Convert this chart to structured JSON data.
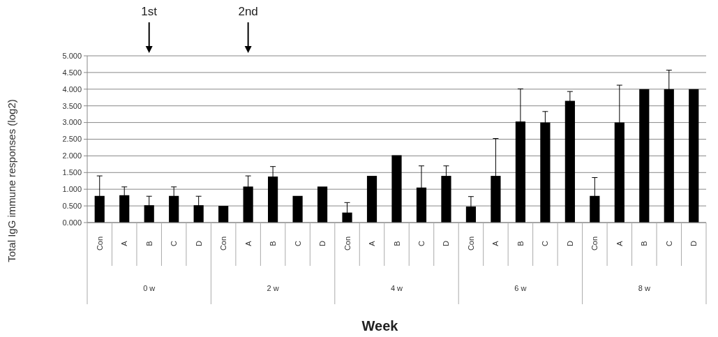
{
  "chart_data": {
    "type": "bar",
    "xlabel": "Week",
    "ylabel": "Total IgG immune responses (log2)",
    "categories": [
      "Con",
      "A",
      "B",
      "C",
      "D",
      "Con",
      "A",
      "B",
      "C",
      "D",
      "Con",
      "A",
      "B",
      "C",
      "D",
      "Con",
      "A",
      "B",
      "C",
      "D",
      "Con",
      "A",
      "B",
      "C",
      "D"
    ],
    "values": [
      0.8,
      0.82,
      0.52,
      0.8,
      0.52,
      0.5,
      1.08,
      1.38,
      0.8,
      1.08,
      0.3,
      1.4,
      2.02,
      1.05,
      1.4,
      0.48,
      1.4,
      3.03,
      3.0,
      3.65,
      0.8,
      3.0,
      4.0,
      4.0,
      4.0
    ],
    "errors": [
      0.6,
      0.25,
      0.27,
      0.27,
      0.27,
      null,
      0.32,
      0.3,
      null,
      null,
      0.3,
      null,
      null,
      0.65,
      0.3,
      0.3,
      1.12,
      0.98,
      0.33,
      0.28,
      0.55,
      1.12,
      null,
      0.57,
      null
    ],
    "color": "#000000",
    "ylim": [
      0,
      5
    ],
    "yticks": [
      {
        "value": 0,
        "label": "0.000"
      },
      {
        "value": 0.5,
        "label": "0.500"
      },
      {
        "value": 1,
        "label": "1.000"
      },
      {
        "value": 1.5,
        "label": "1.500"
      },
      {
        "value": 2,
        "label": "2.000"
      },
      {
        "value": 2.5,
        "label": "2.500"
      },
      {
        "value": 3,
        "label": "3.000"
      },
      {
        "value": 3.5,
        "label": "3.500"
      },
      {
        "value": 4,
        "label": "4.000"
      },
      {
        "value": 4.5,
        "label": "4.500"
      },
      {
        "value": 5,
        "label": "5.000"
      }
    ],
    "grid": "y",
    "annotations": [
      "1st",
      "2nd",
      "0 w",
      "2 w",
      "4 w",
      "6 w",
      "8 w"
    ]
  }
}
